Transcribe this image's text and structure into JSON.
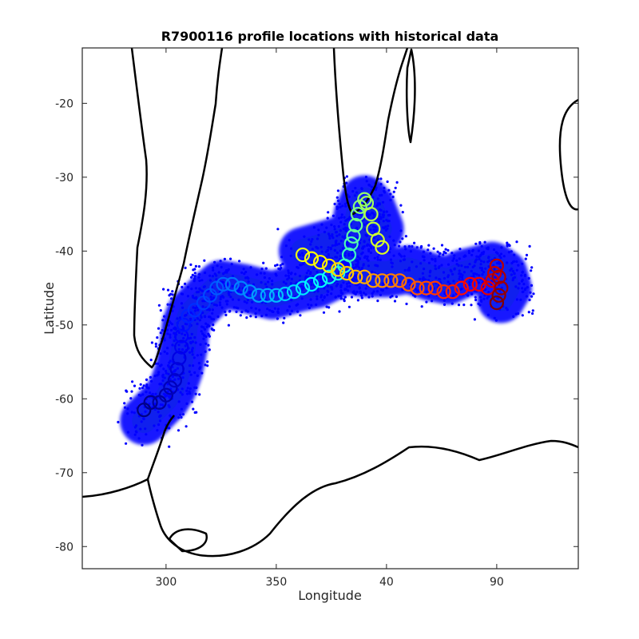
{
  "chart_data": {
    "type": "scatter",
    "title": "R7900116 profile locations with historical data",
    "xlabel": "Longitude",
    "ylabel": "Latitude",
    "x_display_range": [
      262,
      127
    ],
    "x_ticks": [
      {
        "value": 300,
        "label": "300"
      },
      {
        "value": 350,
        "label": "350"
      },
      {
        "value": 40,
        "label": "40"
      },
      {
        "value": 90,
        "label": "90"
      }
    ],
    "ylim": [
      -83,
      -12.5
    ],
    "y_ticks": [
      -20,
      -30,
      -40,
      -50,
      -60,
      -70,
      -80
    ],
    "grid": false,
    "colormap": "jet",
    "background_color": "#0000ff",
    "coastline_color": "#000000",
    "historical_track": [
      [
        290,
        -63
      ],
      [
        295,
        -61.5
      ],
      [
        300,
        -60
      ],
      [
        303,
        -58.5
      ],
      [
        306,
        -56
      ],
      [
        308,
        -53
      ],
      [
        309,
        -50
      ],
      [
        311,
        -48.5
      ],
      [
        316,
        -47
      ],
      [
        321,
        -45.5
      ],
      [
        325,
        -44.5
      ],
      [
        335,
        -45
      ],
      [
        348,
        -46
      ],
      [
        360,
        -45
      ],
      [
        368,
        -44.5
      ],
      [
        375,
        -43.5
      ],
      [
        380,
        -42
      ],
      [
        383,
        -41
      ],
      [
        385,
        -38
      ],
      [
        387,
        -35
      ],
      [
        390,
        -33
      ],
      [
        393,
        -34
      ],
      [
        397,
        -37
      ],
      [
        2,
        -40
      ],
      [
        10,
        -41.5
      ],
      [
        20,
        -42.5
      ],
      [
        30,
        -43
      ],
      [
        40,
        -43
      ],
      [
        50,
        -42.5
      ],
      [
        60,
        -43.5
      ],
      [
        68,
        -44
      ],
      [
        75,
        -43
      ],
      [
        82,
        -42.5
      ],
      [
        88,
        -42
      ],
      [
        93,
        -43
      ],
      [
        95,
        -45
      ],
      [
        92,
        -46.5
      ]
    ],
    "profiles": [
      [
        290,
        -61.5
      ],
      [
        293,
        -60.5
      ],
      [
        297,
        -60.5
      ],
      [
        300,
        -59.5
      ],
      [
        302,
        -58.5
      ],
      [
        304,
        -57.5
      ],
      [
        305,
        -56
      ],
      [
        306,
        -54.5
      ],
      [
        307,
        -53
      ],
      [
        307,
        -51.5
      ],
      [
        308,
        -50
      ],
      [
        310,
        -48.8
      ],
      [
        313,
        -48
      ],
      [
        317,
        -47
      ],
      [
        320,
        -46
      ],
      [
        323,
        -45
      ],
      [
        326,
        -44.5
      ],
      [
        330,
        -44.5
      ],
      [
        334,
        -45
      ],
      [
        338,
        -45.5
      ],
      [
        342,
        -46
      ],
      [
        346,
        -46
      ],
      [
        350,
        -46
      ],
      [
        354,
        -45.8
      ],
      [
        358,
        -45.5
      ],
      [
        362,
        -45
      ],
      [
        366,
        -44.5
      ],
      [
        370,
        -44
      ],
      [
        374,
        -43.5
      ],
      [
        378,
        -43
      ],
      [
        381,
        -42
      ],
      [
        383,
        -40.5
      ],
      [
        384,
        -39
      ],
      [
        385,
        -38
      ],
      [
        386,
        -36.5
      ],
      [
        387,
        -35
      ],
      [
        388,
        -34
      ],
      [
        390,
        -33
      ],
      [
        391,
        -33.5
      ],
      [
        393,
        -35
      ],
      [
        394,
        -37
      ],
      [
        396,
        -38.5
      ],
      [
        398,
        -39.5
      ],
      [
        2,
        -40.5
      ],
      [
        6,
        -41
      ],
      [
        10,
        -41.5
      ],
      [
        14,
        -42
      ],
      [
        18,
        -42.5
      ],
      [
        22,
        -43
      ],
      [
        26,
        -43.5
      ],
      [
        30,
        -43.5
      ],
      [
        34,
        -44
      ],
      [
        38,
        -44
      ],
      [
        42,
        -44
      ],
      [
        46,
        -44
      ],
      [
        50,
        -44.5
      ],
      [
        54,
        -45
      ],
      [
        58,
        -45
      ],
      [
        62,
        -45
      ],
      [
        66,
        -45.5
      ],
      [
        70,
        -45.5
      ],
      [
        74,
        -45
      ],
      [
        78,
        -44.5
      ],
      [
        82,
        -44.5
      ],
      [
        86,
        -45
      ],
      [
        88,
        -44
      ],
      [
        89,
        -43
      ],
      [
        90,
        -42
      ],
      [
        91,
        -43.5
      ],
      [
        92,
        -45
      ],
      [
        91,
        -46
      ],
      [
        90,
        -47
      ]
    ]
  }
}
